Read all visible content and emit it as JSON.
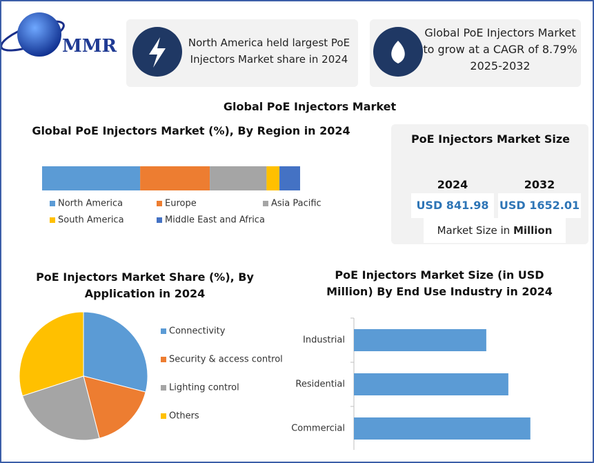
{
  "logo": {
    "text": "MMR"
  },
  "highlights": [
    {
      "text": "North America held largest PoE Injectors Market share in 2024"
    },
    {
      "text": "Global PoE Injectors Market to grow at a CAGR of 8.79% 2025-2032"
    }
  ],
  "page_title": "Global PoE Injectors Market",
  "market_size": {
    "title": "PoE Injectors Market Size",
    "items": [
      {
        "year": "2024",
        "value": "USD 841.98"
      },
      {
        "year": "2032",
        "value": "USD 1652.01"
      }
    ],
    "note": {
      "prefix": "Market Size in",
      "emphasis": "Million"
    }
  },
  "chart_data": [
    {
      "type": "stacked_bar",
      "title": "Global PoE Injectors Market (%), By Region in 2024",
      "xlim": [
        0,
        100
      ],
      "series": [
        {
          "name": "North America",
          "color": "#5b9bd5",
          "values": [
            38
          ]
        },
        {
          "name": "Europe",
          "color": "#ed7d31",
          "values": [
            27
          ]
        },
        {
          "name": "Asia Pacific",
          "color": "#a5a5a5",
          "values": [
            22
          ]
        },
        {
          "name": "South America",
          "color": "#ffc000",
          "values": [
            5
          ]
        },
        {
          "name": "Middle East and Africa",
          "color": "#4472c4",
          "values": [
            8
          ]
        }
      ]
    },
    {
      "type": "pie",
      "title": "PoE Injectors Market  Share (%), By Application in 2024",
      "categories": [
        "Connectivity",
        "Security & access control",
        "Lighting control",
        "Others"
      ],
      "values": [
        29,
        17,
        24,
        30
      ],
      "colors": [
        "#5b9bd5",
        "#ed7d31",
        "#a5a5a5",
        "#ffc000"
      ]
    },
    {
      "type": "bar",
      "orientation": "horizontal",
      "title": "PoE Injectors Market  Size (in USD Million) By End Use Industry in 2024",
      "categories": [
        "Industrial",
        "Residential",
        "Commercial"
      ],
      "values": [
        240.6,
        280.7,
        320.7
      ],
      "color": "#5b9bd5",
      "xlim": [
        0,
        400
      ]
    }
  ]
}
